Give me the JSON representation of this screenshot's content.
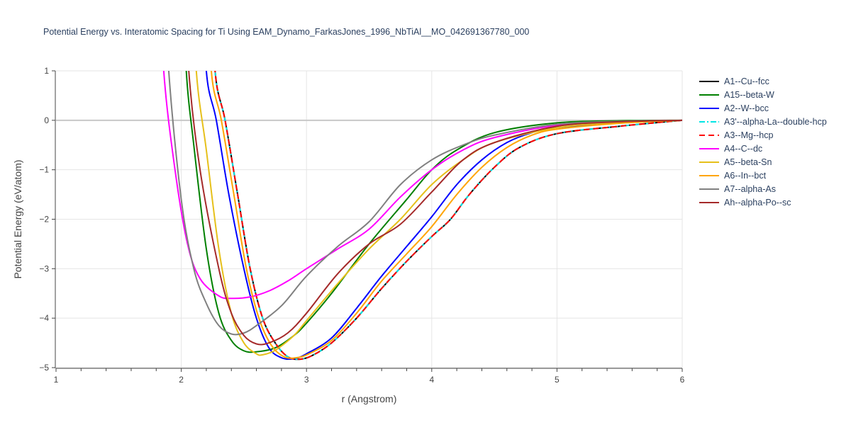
{
  "chart_data": {
    "type": "line",
    "title": "Potential Energy vs. Interatomic Spacing for Ti Using EAM_Dynamo_FarkasJones_1996_NbTiAl__MO_042691367780_000",
    "xlabel": "r (Angstrom)",
    "ylabel": "Potential Energy (eV/atom)",
    "xlim": [
      1,
      6
    ],
    "ylim": [
      -5,
      1
    ],
    "xticks": [
      "1",
      "2",
      "3",
      "4",
      "5",
      "6"
    ],
    "yticks": [
      "1",
      "0",
      "−1",
      "−2",
      "−3",
      "−4",
      "−5"
    ],
    "grid": true,
    "legend_position": "right",
    "series": [
      {
        "name": "A1--Cu--fcc",
        "color": "#000000",
        "dash": "solid",
        "x": [
          2.27,
          2.35,
          2.45,
          2.55,
          2.65,
          2.75,
          2.85,
          2.95,
          3.05,
          3.2,
          3.4,
          3.6,
          3.8,
          4.0,
          4.15,
          4.3,
          4.5,
          4.7,
          5.0,
          5.5,
          6.0
        ],
        "y": [
          1,
          0,
          -1.5,
          -3,
          -4,
          -4.5,
          -4.78,
          -4.83,
          -4.75,
          -4.5,
          -4.0,
          -3.4,
          -2.85,
          -2.35,
          -2.0,
          -1.5,
          -0.95,
          -0.55,
          -0.27,
          -0.12,
          0
        ]
      },
      {
        "name": "A15--beta-W",
        "color": "#008000",
        "dash": "solid",
        "x": [
          2.04,
          2.1,
          2.2,
          2.3,
          2.4,
          2.5,
          2.6,
          2.75,
          2.9,
          3.0,
          3.2,
          3.5,
          3.8,
          4.0,
          4.2,
          4.5,
          5.0,
          5.5,
          6.0
        ],
        "y": [
          1,
          -0.5,
          -2.6,
          -3.9,
          -4.45,
          -4.66,
          -4.68,
          -4.6,
          -4.35,
          -4.1,
          -3.5,
          -2.5,
          -1.6,
          -1.0,
          -0.6,
          -0.25,
          -0.05,
          -0.01,
          0
        ]
      },
      {
        "name": "A2--W--bcc",
        "color": "#0000ff",
        "dash": "solid",
        "x": [
          2.2,
          2.28,
          2.38,
          2.5,
          2.6,
          2.7,
          2.8,
          2.9,
          3.0,
          3.2,
          3.4,
          3.6,
          3.8,
          4.0,
          4.2,
          4.4,
          4.6,
          4.8,
          5.0,
          5.5,
          6.0
        ],
        "y": [
          1,
          0,
          -1.5,
          -3,
          -4,
          -4.6,
          -4.8,
          -4.82,
          -4.72,
          -4.4,
          -3.8,
          -3.15,
          -2.55,
          -1.95,
          -1.3,
          -0.8,
          -0.45,
          -0.25,
          -0.15,
          -0.05,
          0
        ]
      },
      {
        "name": "A3'--alpha-La--double-hcp",
        "color": "#00e5e5",
        "dash": "dashdot",
        "x": [
          2.27,
          2.35,
          2.45,
          2.55,
          2.65,
          2.75,
          2.85,
          2.95,
          3.05,
          3.2,
          3.4,
          3.6,
          3.8,
          4.0,
          4.15,
          4.3,
          4.5,
          4.7,
          5.0,
          5.5,
          6.0
        ],
        "y": [
          1,
          0,
          -1.5,
          -3,
          -4,
          -4.5,
          -4.78,
          -4.83,
          -4.75,
          -4.5,
          -4.0,
          -3.4,
          -2.85,
          -2.35,
          -2.0,
          -1.5,
          -0.95,
          -0.55,
          -0.27,
          -0.12,
          0
        ]
      },
      {
        "name": "A3--Mg--hcp",
        "color": "#ff0000",
        "dash": "dash",
        "x": [
          2.27,
          2.35,
          2.45,
          2.55,
          2.65,
          2.75,
          2.85,
          2.95,
          3.05,
          3.2,
          3.4,
          3.6,
          3.8,
          4.0,
          4.15,
          4.3,
          4.5,
          4.7,
          5.0,
          5.5,
          6.0
        ],
        "y": [
          1,
          0,
          -1.5,
          -3,
          -4,
          -4.5,
          -4.78,
          -4.83,
          -4.75,
          -4.5,
          -4.0,
          -3.4,
          -2.85,
          -2.35,
          -2.0,
          -1.5,
          -0.95,
          -0.55,
          -0.27,
          -0.12,
          0
        ]
      },
      {
        "name": "A4--C--dc",
        "color": "#ff00ff",
        "dash": "solid",
        "x": [
          1.86,
          1.95,
          2.05,
          2.15,
          2.3,
          2.4,
          2.55,
          2.7,
          2.85,
          3.0,
          3.25,
          3.5,
          3.75,
          4.0,
          4.25,
          4.5,
          5.0,
          5.5,
          6.0
        ],
        "y": [
          1,
          -1,
          -2.5,
          -3.2,
          -3.55,
          -3.6,
          -3.57,
          -3.45,
          -3.25,
          -3.0,
          -2.6,
          -2.2,
          -1.55,
          -1.0,
          -0.6,
          -0.35,
          -0.1,
          -0.03,
          0
        ]
      },
      {
        "name": "A5--beta-Sn",
        "color": "#e6c01a",
        "dash": "solid",
        "x": [
          2.12,
          2.2,
          2.3,
          2.4,
          2.5,
          2.6,
          2.65,
          2.75,
          2.9,
          3.0,
          3.25,
          3.5,
          3.75,
          4.0,
          4.25,
          4.5,
          5.0,
          5.5,
          6.0
        ],
        "y": [
          1,
          -0.6,
          -2.6,
          -3.9,
          -4.5,
          -4.72,
          -4.74,
          -4.65,
          -4.35,
          -4.05,
          -3.3,
          -2.6,
          -2.0,
          -1.3,
          -0.8,
          -0.45,
          -0.15,
          -0.04,
          0
        ]
      },
      {
        "name": "A6--In--bct",
        "color": "#ffa500",
        "dash": "solid",
        "x": [
          2.24,
          2.32,
          2.42,
          2.52,
          2.62,
          2.72,
          2.82,
          2.92,
          3.02,
          3.2,
          3.4,
          3.6,
          3.8,
          4.0,
          4.2,
          4.4,
          4.6,
          4.8,
          5.0,
          5.5,
          6.0
        ],
        "y": [
          1,
          0,
          -1.5,
          -3,
          -4,
          -4.55,
          -4.78,
          -4.8,
          -4.72,
          -4.45,
          -3.9,
          -3.25,
          -2.7,
          -2.15,
          -1.5,
          -0.95,
          -0.55,
          -0.3,
          -0.18,
          -0.06,
          0
        ]
      },
      {
        "name": "A7--alpha-As",
        "color": "#808080",
        "dash": "solid",
        "x": [
          1.9,
          2.0,
          2.1,
          2.2,
          2.3,
          2.4,
          2.5,
          2.6,
          2.8,
          3.0,
          3.25,
          3.5,
          3.75,
          4.0,
          4.25,
          4.5,
          5.0,
          5.5,
          6.0
        ],
        "y": [
          1,
          -1.6,
          -3,
          -3.7,
          -4.15,
          -4.32,
          -4.3,
          -4.15,
          -3.75,
          -3.15,
          -2.55,
          -2.05,
          -1.3,
          -0.8,
          -0.5,
          -0.3,
          -0.08,
          -0.02,
          0
        ]
      },
      {
        "name": "Ah--alpha-Po--sc",
        "color": "#a52a2a",
        "dash": "solid",
        "x": [
          2.06,
          2.15,
          2.3,
          2.4,
          2.5,
          2.6,
          2.7,
          2.85,
          3.0,
          3.25,
          3.5,
          3.75,
          4.0,
          4.25,
          4.5,
          5.0,
          5.5,
          6.0
        ],
        "y": [
          1,
          -1,
          -3,
          -3.9,
          -4.35,
          -4.52,
          -4.5,
          -4.3,
          -3.9,
          -3.1,
          -2.5,
          -2.1,
          -1.45,
          -0.8,
          -0.45,
          -0.12,
          -0.03,
          0
        ]
      }
    ]
  }
}
